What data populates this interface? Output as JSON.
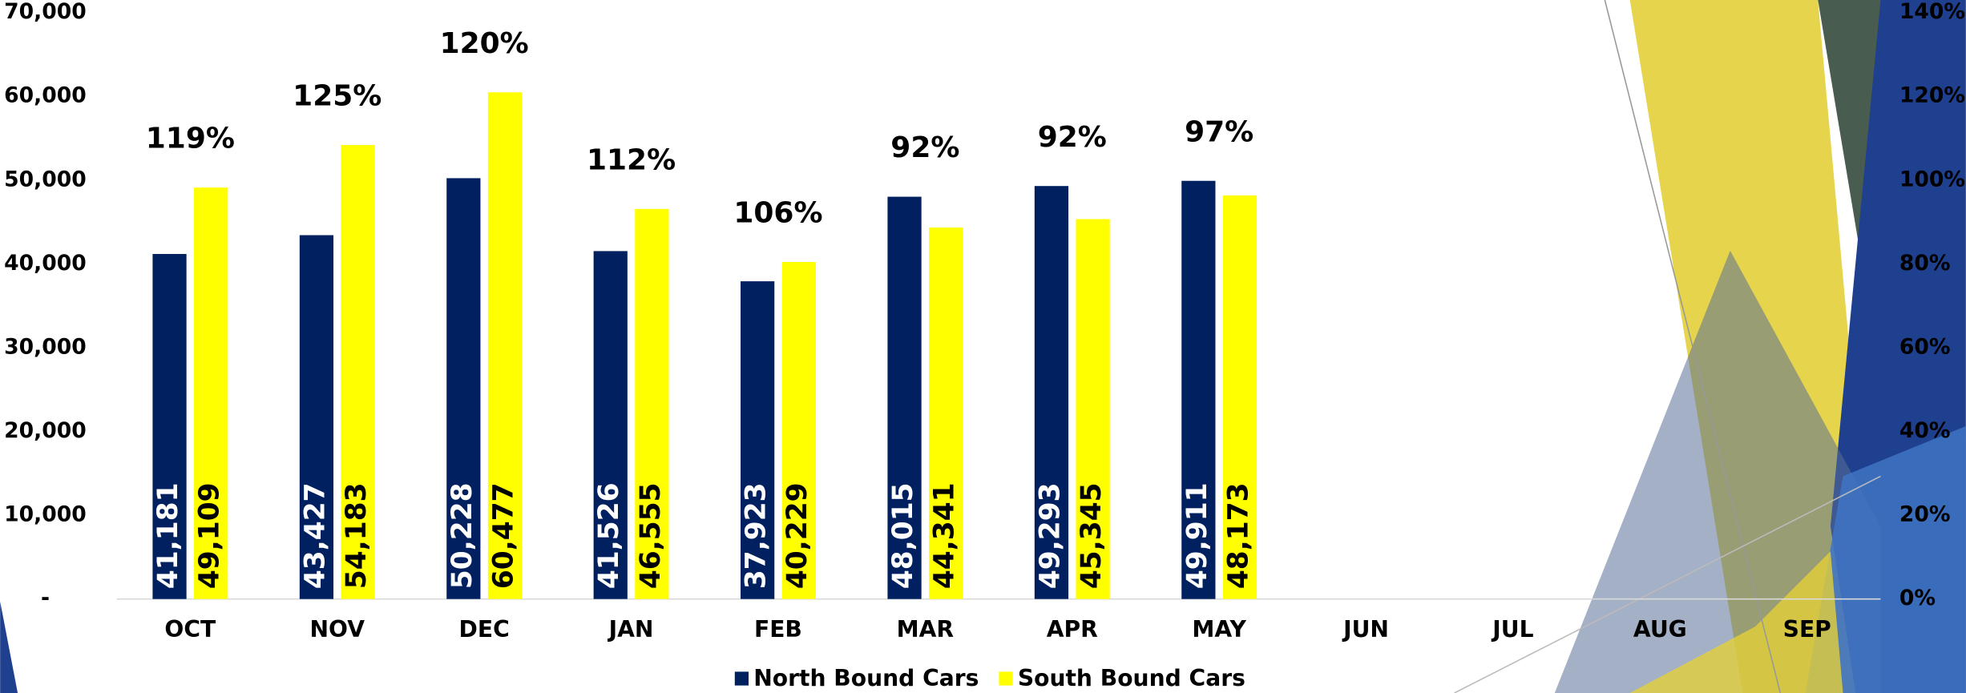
{
  "chart_data": {
    "type": "bar",
    "categories": [
      "OCT",
      "NOV",
      "DEC",
      "JAN",
      "FEB",
      "MAR",
      "APR",
      "MAY",
      "JUN",
      "JUL",
      "AUG",
      "SEP"
    ],
    "series": [
      {
        "name": "North Bound Cars",
        "color": "#002060",
        "values": [
          41181,
          43427,
          50228,
          41526,
          37923,
          48015,
          49293,
          49911,
          null,
          null,
          null,
          null
        ],
        "value_labels": [
          "41,181",
          "43,427",
          "50,228",
          "41,526",
          "37,923",
          "48,015",
          "49,293",
          "49,911",
          null,
          null,
          null,
          null
        ]
      },
      {
        "name": "South Bound Cars",
        "color": "#ffff00",
        "values": [
          49109,
          54183,
          60477,
          46555,
          40229,
          44341,
          45345,
          48173,
          null,
          null,
          null,
          null
        ],
        "value_labels": [
          "49,109",
          "54,183",
          "60,477",
          "46,555",
          "40,229",
          "44,341",
          "45,345",
          "48,173",
          null,
          null,
          null,
          null
        ]
      }
    ],
    "ratio": {
      "axis": "y2",
      "values": [
        119,
        125,
        120,
        112,
        106,
        92,
        92,
        97,
        null,
        null,
        null,
        null
      ],
      "value_labels": [
        "119%",
        "125%",
        "120%",
        "112%",
        "106%",
        "92%",
        "92%",
        "97%",
        null,
        null,
        null,
        null
      ]
    },
    "ylim": [
      0,
      70000
    ],
    "yticks": [
      {
        "value": 0,
        "label": "-"
      },
      {
        "value": 10000,
        "label": "10,000"
      },
      {
        "value": 20000,
        "label": "20,000"
      },
      {
        "value": 30000,
        "label": "30,000"
      },
      {
        "value": 40000,
        "label": "40,000"
      },
      {
        "value": 50000,
        "label": "50,000"
      },
      {
        "value": 60000,
        "label": "60,000"
      },
      {
        "value": 70000,
        "label": "70,000"
      }
    ],
    "y2lim": [
      0,
      140
    ],
    "y2ticks": [
      {
        "value": 0,
        "label": "0%"
      },
      {
        "value": 20,
        "label": "20%"
      },
      {
        "value": 40,
        "label": "40%"
      },
      {
        "value": 60,
        "label": "60%"
      },
      {
        "value": 80,
        "label": "80%"
      },
      {
        "value": 100,
        "label": "100%"
      },
      {
        "value": 120,
        "label": "120%"
      },
      {
        "value": 140,
        "label": "140%"
      }
    ],
    "legend": "bottom"
  }
}
